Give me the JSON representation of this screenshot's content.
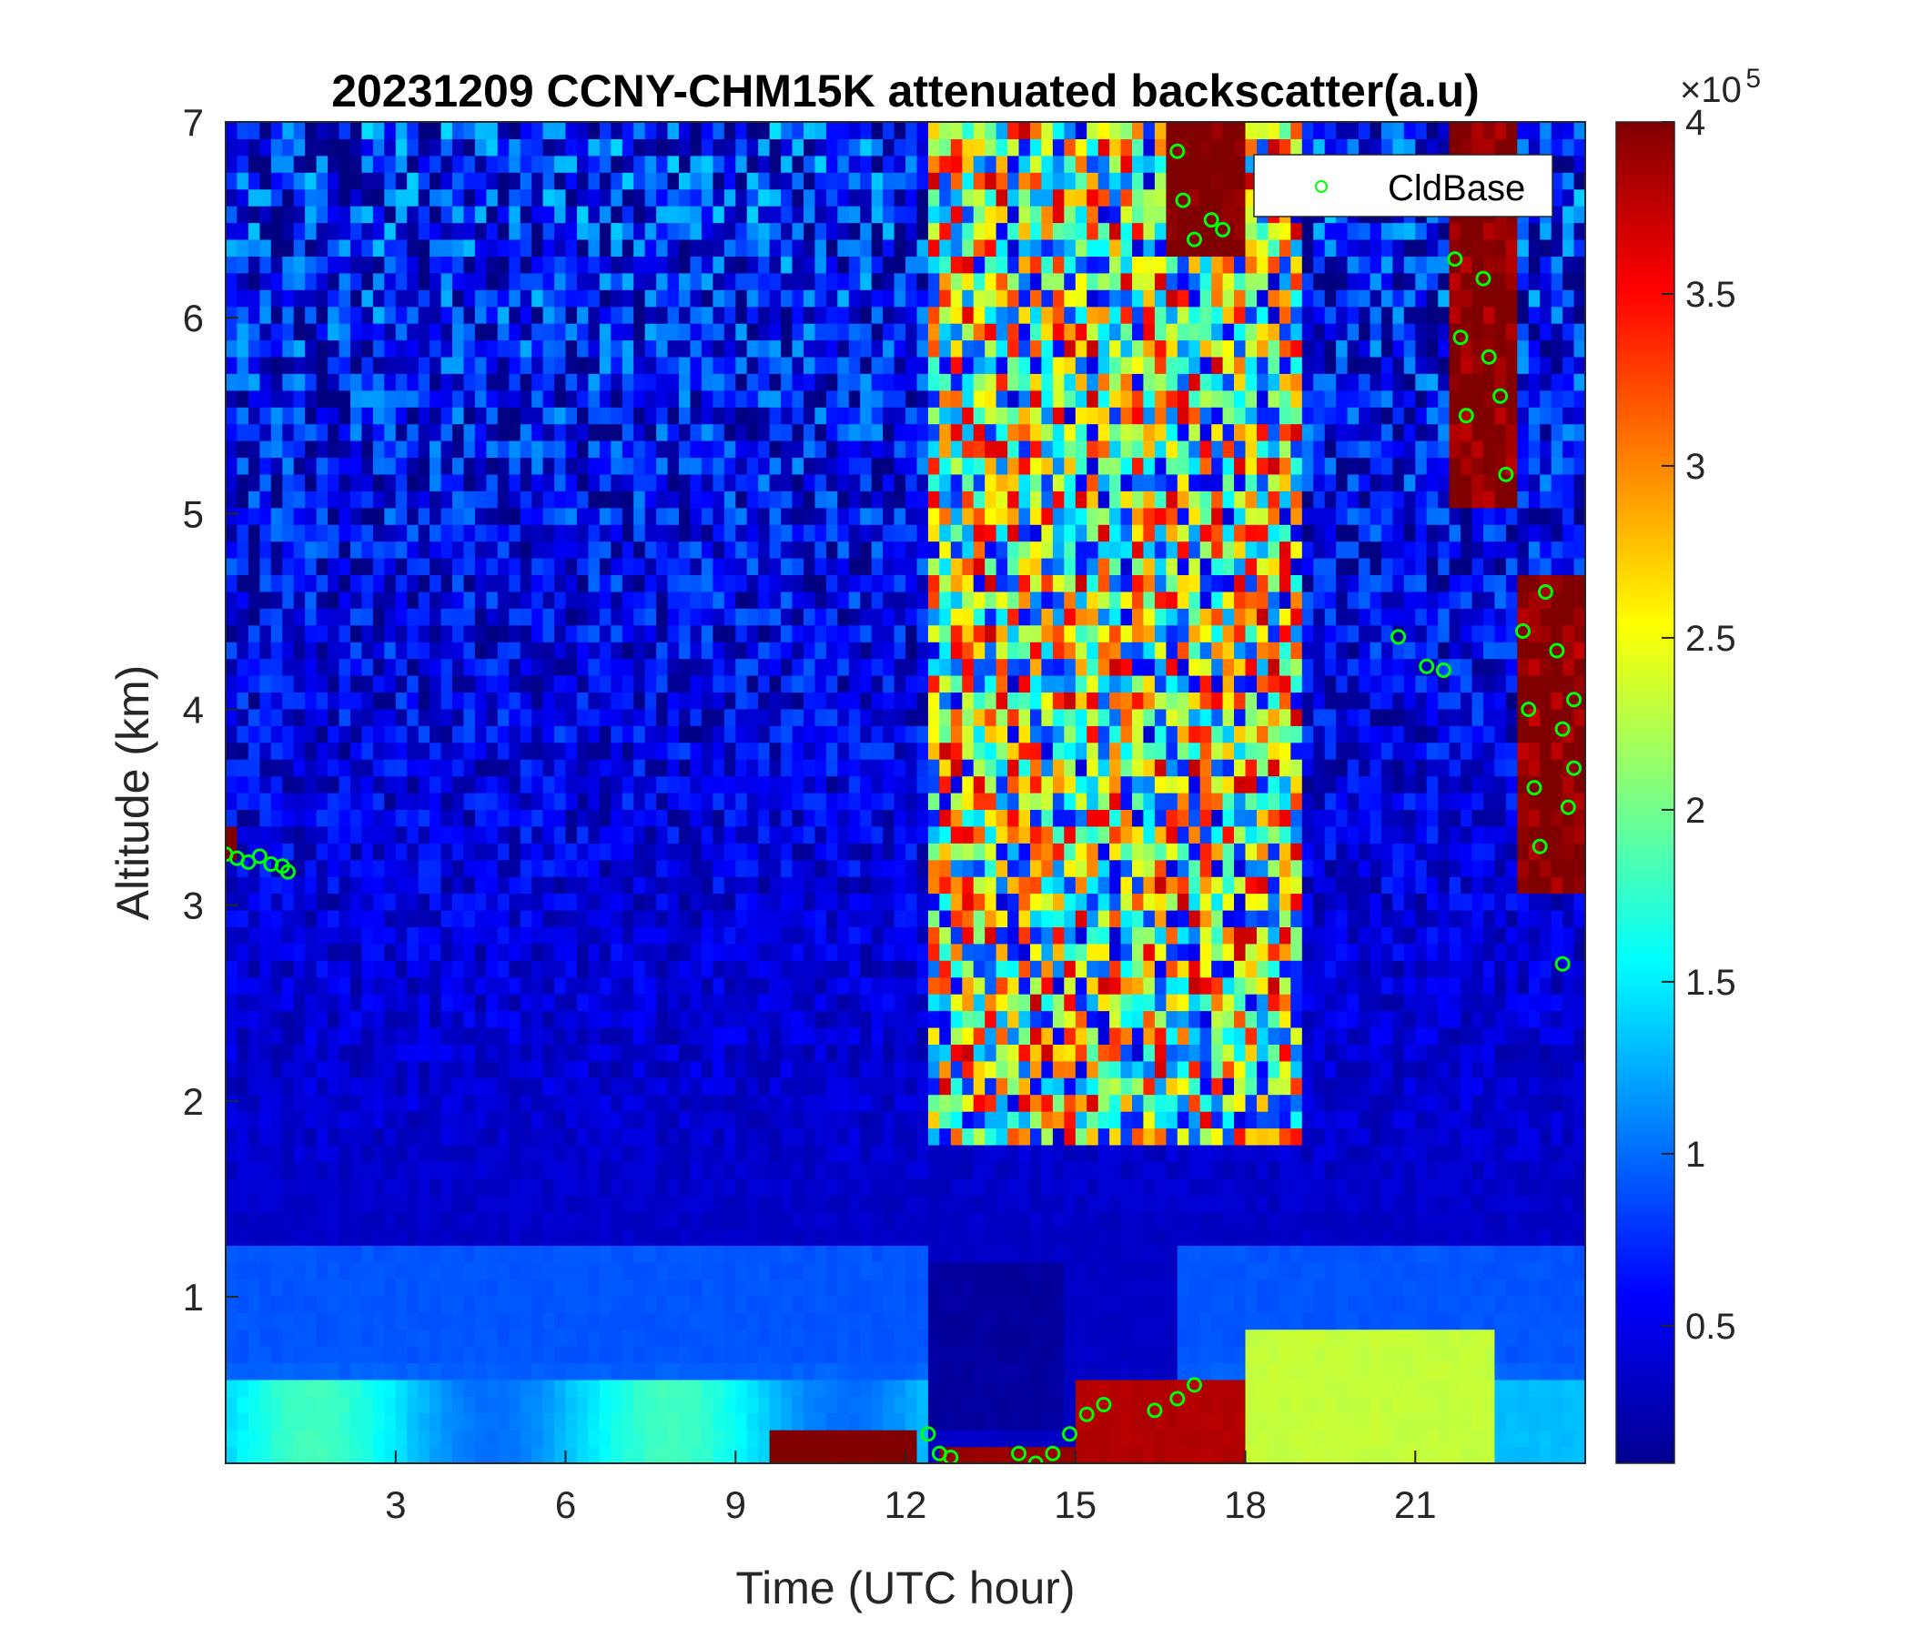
{
  "chart_data": {
    "type": "heatmap",
    "title": "20231209 CCNY-CHM15K attenuated backscatter(a.u)",
    "xlabel": "Time (UTC hour)",
    "ylabel": "Altitude (km)",
    "xlim": [
      0,
      24
    ],
    "ylim": [
      0.15,
      7
    ],
    "xticks": [
      3,
      6,
      9,
      12,
      15,
      18,
      21
    ],
    "xtick_labels": [
      "3",
      "6",
      "9",
      "12",
      "15",
      "18",
      "21"
    ],
    "yticks": [
      1,
      2,
      3,
      4,
      5,
      6,
      7
    ],
    "ytick_labels": [
      "1",
      "2",
      "3",
      "4",
      "5",
      "6",
      "7"
    ],
    "colorbar": {
      "colormap": "jet",
      "range": [
        0.1,
        4.0
      ],
      "multiplier_label": "×10",
      "multiplier_exponent": "5",
      "ticks": [
        0.5,
        1,
        1.5,
        2,
        2.5,
        3,
        3.5,
        4
      ],
      "tick_labels": [
        "0.5",
        "1",
        "1.5",
        "2",
        "2.5",
        "3",
        "3.5",
        "4"
      ]
    },
    "legend": {
      "position": "top-right",
      "entries": [
        {
          "name": "CldBase",
          "marker": "circle",
          "color": "#00ff00"
        }
      ]
    },
    "grid": false,
    "cloud_base_series": {
      "name": "CldBase",
      "points": [
        {
          "x": 0.0,
          "y": 3.26
        },
        {
          "x": 0.2,
          "y": 3.24
        },
        {
          "x": 0.4,
          "y": 3.22
        },
        {
          "x": 0.6,
          "y": 3.25
        },
        {
          "x": 0.8,
          "y": 3.21
        },
        {
          "x": 1.0,
          "y": 3.2
        },
        {
          "x": 1.1,
          "y": 3.17
        },
        {
          "x": 12.4,
          "y": 0.3
        },
        {
          "x": 12.6,
          "y": 0.2
        },
        {
          "x": 12.8,
          "y": 0.18
        },
        {
          "x": 14.0,
          "y": 0.2
        },
        {
          "x": 14.3,
          "y": 0.15
        },
        {
          "x": 14.6,
          "y": 0.2
        },
        {
          "x": 14.9,
          "y": 0.3
        },
        {
          "x": 15.2,
          "y": 0.4
        },
        {
          "x": 15.5,
          "y": 0.45
        },
        {
          "x": 16.4,
          "y": 0.42
        },
        {
          "x": 16.8,
          "y": 0.48
        },
        {
          "x": 17.1,
          "y": 0.55
        },
        {
          "x": 16.8,
          "y": 6.85
        },
        {
          "x": 16.9,
          "y": 6.6
        },
        {
          "x": 17.1,
          "y": 6.4
        },
        {
          "x": 17.4,
          "y": 6.5
        },
        {
          "x": 17.6,
          "y": 6.45
        },
        {
          "x": 20.7,
          "y": 4.37
        },
        {
          "x": 21.2,
          "y": 4.22
        },
        {
          "x": 21.5,
          "y": 4.2
        },
        {
          "x": 21.7,
          "y": 6.3
        },
        {
          "x": 21.8,
          "y": 5.9
        },
        {
          "x": 21.9,
          "y": 5.5
        },
        {
          "x": 22.2,
          "y": 6.2
        },
        {
          "x": 22.3,
          "y": 5.8
        },
        {
          "x": 22.5,
          "y": 5.6
        },
        {
          "x": 22.6,
          "y": 5.2
        },
        {
          "x": 22.9,
          "y": 4.4
        },
        {
          "x": 23.0,
          "y": 4.0
        },
        {
          "x": 23.1,
          "y": 3.6
        },
        {
          "x": 23.2,
          "y": 3.3
        },
        {
          "x": 23.3,
          "y": 4.6
        },
        {
          "x": 23.5,
          "y": 4.3
        },
        {
          "x": 23.6,
          "y": 3.9
        },
        {
          "x": 23.7,
          "y": 3.5
        },
        {
          "x": 23.8,
          "y": 3.7
        },
        {
          "x": 23.8,
          "y": 4.05
        },
        {
          "x": 23.6,
          "y": 2.7
        }
      ]
    }
  }
}
